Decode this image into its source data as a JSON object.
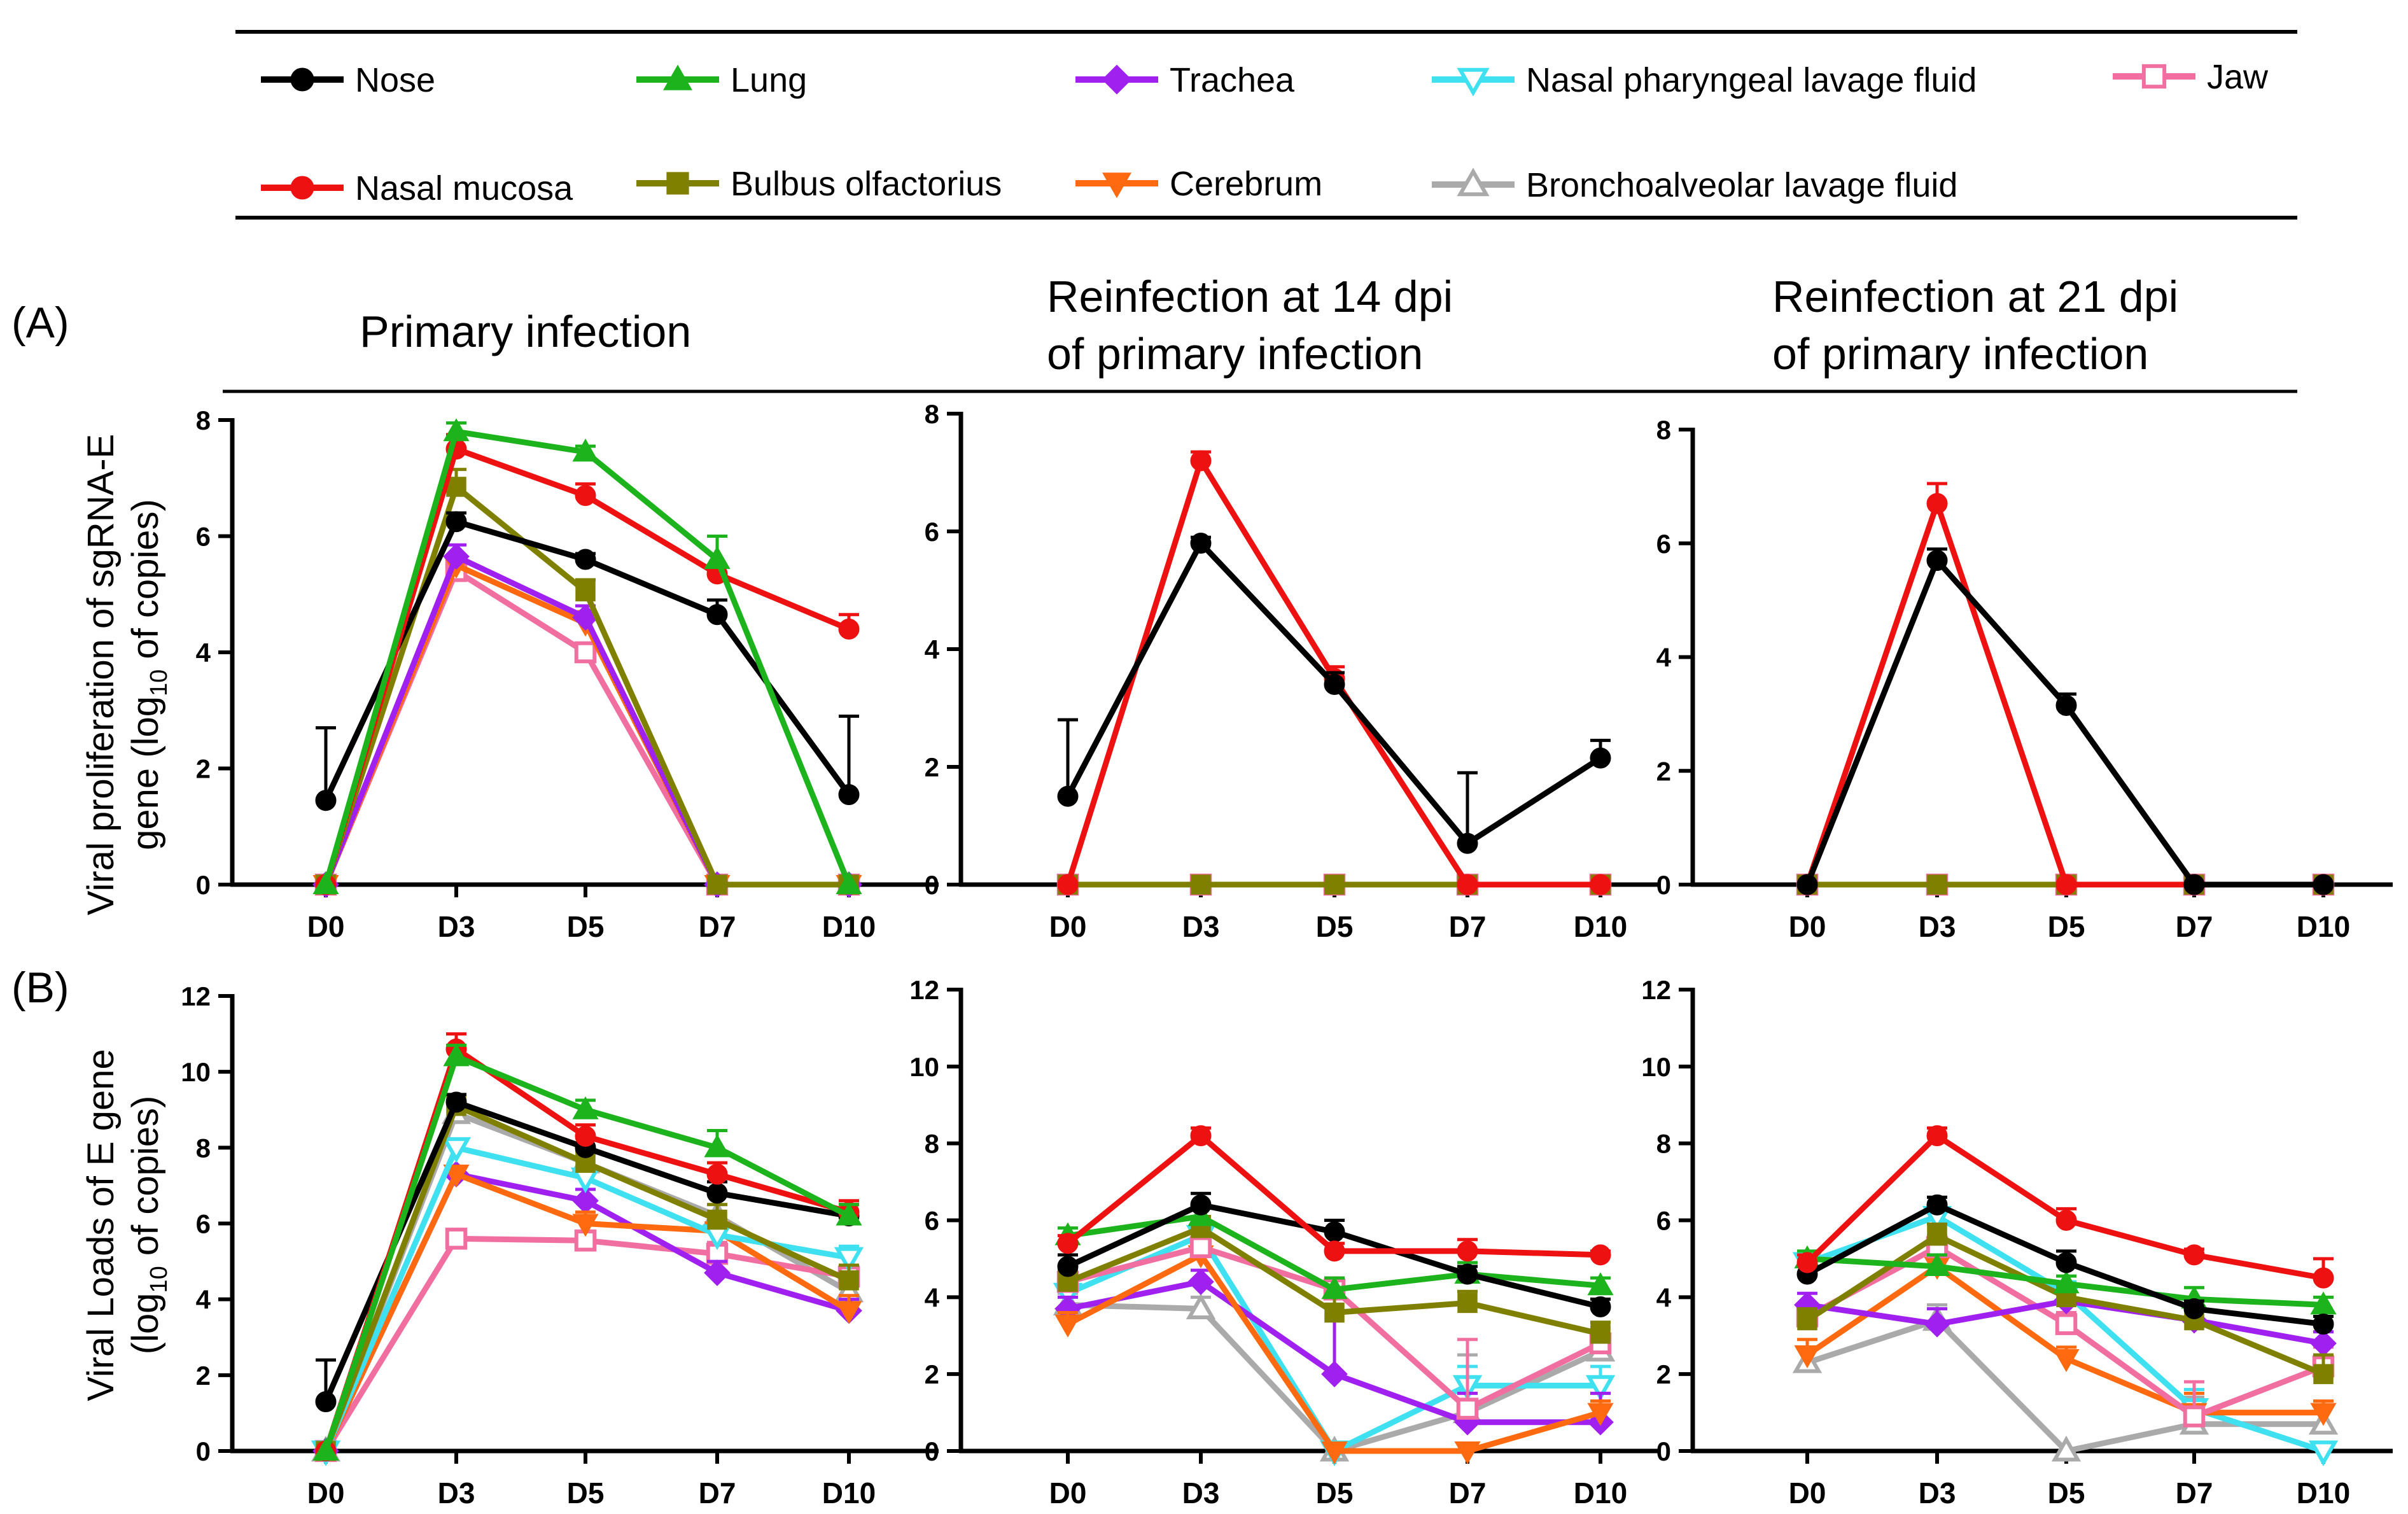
{
  "legend": [
    {
      "key": "nose",
      "label": "Nose",
      "color": "#000000",
      "marker": "circle"
    },
    {
      "key": "lung",
      "label": "Lung",
      "color": "#1DB31D",
      "marker": "triangle-up"
    },
    {
      "key": "trachea",
      "label": "Trachea",
      "color": "#A020F0",
      "marker": "diamond"
    },
    {
      "key": "nplf",
      "label": "Nasal pharyngeal lavage fluid",
      "color": "#3FE0F0",
      "marker": "triangle-down-open"
    },
    {
      "key": "jaw",
      "label": "Jaw",
      "color": "#F06EA0",
      "marker": "square-open"
    },
    {
      "key": "mucosa",
      "label": "Nasal mucosa",
      "color": "#EE1111",
      "marker": "circle"
    },
    {
      "key": "bulbus",
      "label": "Bulbus olfactorius",
      "color": "#808000",
      "marker": "square"
    },
    {
      "key": "cerebrum",
      "label": "Cerebrum",
      "color": "#FF6A10",
      "marker": "triangle-down"
    },
    {
      "key": "balf",
      "label": "Bronchoalveolar lavage fluid",
      "color": "#AAAAAA",
      "marker": "triangle-up-open"
    }
  ],
  "headers": {
    "panel_a": "(A)",
    "panel_b": "(B)",
    "col1": [
      "Primary infection"
    ],
    "col2": [
      "Reinfection at 14 dpi",
      "of primary infection"
    ],
    "col3": [
      "Reinfection at 21 dpi",
      "of primary infection"
    ]
  },
  "y_titles": {
    "a_line1_pre": "Viral proliferation of sgRNA-E",
    "a_line2_pre": "gene (log",
    "a_line2_sub": "10",
    "a_line2_post": " of copies)",
    "b_line1_pre": "Viral Loads of E gene",
    "b_line2_pre": "(log",
    "b_line2_sub": "10",
    "b_line2_post": " of copies)"
  },
  "chart_data": [
    {
      "id": "A1",
      "type": "line",
      "title": "Primary infection",
      "categories": [
        "D0",
        "D3",
        "D5",
        "D7",
        "D10"
      ],
      "ylim": [
        0,
        8
      ],
      "yticks": [
        0,
        2,
        4,
        6,
        8
      ],
      "ylabel": "Viral proliferation of sgRNA-E gene (log10 of copies)",
      "series": [
        {
          "key": "jaw",
          "values": [
            0,
            5.4,
            4.0,
            0,
            0
          ],
          "err": [
            0,
            0.15,
            0.15,
            0,
            0
          ]
        },
        {
          "key": "cerebrum",
          "values": [
            0,
            5.5,
            4.5,
            0,
            0
          ],
          "err": [
            0,
            0.15,
            0.2,
            0,
            0
          ]
        },
        {
          "key": "trachea",
          "values": [
            0,
            5.65,
            4.6,
            0,
            0
          ],
          "err": [
            0,
            0.2,
            0.2,
            0,
            0
          ]
        },
        {
          "key": "bulbus",
          "values": [
            0,
            6.85,
            5.05,
            0,
            0
          ],
          "err": [
            0,
            0.3,
            0.2,
            0,
            0
          ]
        },
        {
          "key": "nose",
          "values": [
            1.45,
            6.25,
            5.6,
            4.65,
            1.55
          ],
          "err": [
            1.25,
            0.15,
            0.1,
            0.25,
            1.35
          ]
        },
        {
          "key": "mucosa",
          "values": [
            0,
            7.5,
            6.7,
            5.35,
            4.4
          ],
          "err": [
            0,
            0.25,
            0.2,
            0.15,
            0.25
          ]
        },
        {
          "key": "lung",
          "values": [
            0,
            7.8,
            7.45,
            5.6,
            0
          ],
          "err": [
            0,
            0.15,
            0.1,
            0.4,
            0
          ]
        }
      ]
    },
    {
      "id": "A2",
      "type": "line",
      "title": "Reinfection at 14 dpi of primary infection",
      "categories": [
        "D0",
        "D3",
        "D5",
        "D7",
        "D10"
      ],
      "ylim": [
        0,
        8
      ],
      "yticks": [
        0,
        2,
        4,
        6,
        8
      ],
      "series": [
        {
          "key": "jaw",
          "values": [
            0,
            0,
            0,
            0,
            0
          ],
          "err": [
            0,
            0,
            0,
            0,
            0
          ]
        },
        {
          "key": "bulbus",
          "values": [
            0,
            0,
            0,
            0,
            0
          ],
          "err": [
            0,
            0,
            0,
            0,
            0
          ]
        },
        {
          "key": "mucosa",
          "values": [
            0,
            7.2,
            3.5,
            0,
            0
          ],
          "err": [
            0,
            0.15,
            0.2,
            0,
            0
          ]
        },
        {
          "key": "nose",
          "values": [
            1.5,
            5.8,
            3.4,
            0.7,
            2.15
          ],
          "err": [
            1.3,
            0.1,
            0.2,
            1.2,
            0.3
          ]
        }
      ]
    },
    {
      "id": "A3",
      "type": "line",
      "title": "Reinfection at 21 dpi of primary infection",
      "categories": [
        "D0",
        "D3",
        "D5",
        "D7",
        "D10"
      ],
      "ylim": [
        0,
        8
      ],
      "yticks": [
        0,
        2,
        4,
        6,
        8
      ],
      "series": [
        {
          "key": "jaw",
          "values": [
            0,
            0,
            0,
            0,
            0
          ],
          "err": [
            0,
            0,
            0,
            0,
            0
          ]
        },
        {
          "key": "bulbus",
          "values": [
            0,
            0,
            0,
            0,
            0
          ],
          "err": [
            0,
            0,
            0,
            0,
            0
          ]
        },
        {
          "key": "mucosa",
          "values": [
            0,
            6.7,
            0,
            0,
            0
          ],
          "err": [
            0,
            0.35,
            0,
            0,
            0
          ]
        },
        {
          "key": "nose",
          "values": [
            0,
            5.7,
            3.15,
            0,
            0
          ],
          "err": [
            0,
            0.2,
            0.2,
            0,
            0
          ]
        }
      ]
    },
    {
      "id": "B1",
      "type": "line",
      "title": "Primary infection",
      "categories": [
        "D0",
        "D3",
        "D5",
        "D7",
        "D10"
      ],
      "ylim": [
        0,
        12
      ],
      "yticks": [
        0,
        2,
        4,
        6,
        8,
        10,
        12
      ],
      "ylabel": "Viral Loads of E gene (log10 of copies)",
      "series": [
        {
          "key": "balf",
          "values": [
            0,
            8.9,
            7.6,
            6.2,
            4.2
          ],
          "err": [
            0,
            0.3,
            0.3,
            0.3,
            0.3
          ]
        },
        {
          "key": "jaw",
          "values": [
            0,
            5.6,
            5.55,
            5.2,
            4.6
          ],
          "err": [
            0,
            0.2,
            0.25,
            0.3,
            0.3
          ]
        },
        {
          "key": "trachea",
          "values": [
            0,
            7.3,
            6.6,
            4.7,
            3.7
          ],
          "err": [
            0,
            0.2,
            0.3,
            0.3,
            0.3
          ]
        },
        {
          "key": "cerebrum",
          "values": [
            0,
            7.3,
            6.0,
            5.8,
            3.7
          ],
          "err": [
            0,
            0.2,
            0.3,
            0.3,
            0.4
          ]
        },
        {
          "key": "nplf",
          "values": [
            0,
            8.0,
            7.2,
            5.7,
            5.1
          ],
          "err": [
            0,
            0.2,
            0.3,
            0.3,
            0.3
          ]
        },
        {
          "key": "bulbus",
          "values": [
            0,
            9.1,
            7.6,
            6.1,
            4.5
          ],
          "err": [
            0,
            0.3,
            0.3,
            0.4,
            0.4
          ]
        },
        {
          "key": "nose",
          "values": [
            1.3,
            9.2,
            8.0,
            6.8,
            6.2
          ],
          "err": [
            1.1,
            0.2,
            0.3,
            0.3,
            0.3
          ]
        },
        {
          "key": "mucosa",
          "values": [
            0,
            10.6,
            8.3,
            7.3,
            6.3
          ],
          "err": [
            0,
            0.4,
            0.3,
            0.3,
            0.3
          ]
        },
        {
          "key": "lung",
          "values": [
            0,
            10.4,
            9.0,
            8.0,
            6.2
          ],
          "err": [
            0,
            0.3,
            0.25,
            0.45,
            0.3
          ]
        }
      ]
    },
    {
      "id": "B2",
      "type": "line",
      "title": "Reinfection at 14 dpi of primary infection",
      "categories": [
        "D0",
        "D3",
        "D5",
        "D7",
        "D10"
      ],
      "ylim": [
        0,
        12
      ],
      "yticks": [
        0,
        2,
        4,
        6,
        8,
        10,
        12
      ],
      "series": [
        {
          "key": "balf",
          "values": [
            3.8,
            3.7,
            0,
            1.0,
            2.6
          ],
          "err": [
            0.3,
            0.3,
            0,
            1.5,
            0.4
          ]
        },
        {
          "key": "nplf",
          "values": [
            4.1,
            5.6,
            0,
            1.7,
            1.7
          ],
          "err": [
            0.3,
            0.3,
            0,
            0.5,
            0.5
          ]
        },
        {
          "key": "trachea",
          "values": [
            3.7,
            4.4,
            2.0,
            0.75,
            0.75
          ],
          "err": [
            0.3,
            0.3,
            2.0,
            0.75,
            0.75
          ]
        },
        {
          "key": "cerebrum",
          "values": [
            3.3,
            5.1,
            0,
            0,
            1.0
          ],
          "err": [
            0.3,
            0.3,
            0,
            0,
            0.3
          ]
        },
        {
          "key": "jaw",
          "values": [
            4.4,
            5.3,
            4.2,
            1.1,
            2.8
          ],
          "err": [
            0.3,
            0.3,
            0.3,
            1.8,
            0.4
          ]
        },
        {
          "key": "bulbus",
          "values": [
            4.4,
            5.8,
            3.6,
            3.85,
            3.05
          ],
          "err": [
            0.3,
            0.3,
            0.4,
            0.3,
            0.3
          ]
        },
        {
          "key": "lung",
          "values": [
            5.6,
            6.1,
            4.2,
            4.6,
            4.3
          ],
          "err": [
            0.2,
            0.3,
            0.3,
            0.3,
            0.2
          ]
        },
        {
          "key": "nose",
          "values": [
            4.8,
            6.4,
            5.7,
            4.6,
            3.75
          ],
          "err": [
            0.3,
            0.3,
            0.3,
            0.2,
            0.2
          ]
        },
        {
          "key": "mucosa",
          "values": [
            5.4,
            8.2,
            5.2,
            5.2,
            5.1
          ],
          "err": [
            0.2,
            0.2,
            0.2,
            0.3,
            0.1
          ]
        }
      ]
    },
    {
      "id": "B3",
      "type": "line",
      "title": "Reinfection at 21 dpi of primary infection",
      "categories": [
        "D0",
        "D3",
        "D5",
        "D7",
        "D10"
      ],
      "ylim": [
        0,
        12
      ],
      "yticks": [
        0,
        2,
        4,
        6,
        8,
        10,
        12
      ],
      "series": [
        {
          "key": "balf",
          "values": [
            2.3,
            3.4,
            0,
            0.7,
            0.7
          ],
          "err": [
            0.4,
            0.4,
            0,
            0.7,
            0.5
          ]
        },
        {
          "key": "nplf",
          "values": [
            4.9,
            6.1,
            4.1,
            1.1,
            0
          ],
          "err": [
            0.3,
            0.3,
            0.3,
            0.5,
            0
          ]
        },
        {
          "key": "cerebrum",
          "values": [
            2.5,
            4.8,
            2.4,
            1.0,
            1.0
          ],
          "err": [
            0.4,
            0.3,
            0.3,
            0.5,
            0.3
          ]
        },
        {
          "key": "jaw",
          "values": [
            3.5,
            5.3,
            3.3,
            0.9,
            2.2
          ],
          "err": [
            0.3,
            0.3,
            0.3,
            0.9,
            0.5
          ]
        },
        {
          "key": "trachea",
          "values": [
            3.8,
            3.3,
            3.9,
            3.4,
            2.8
          ],
          "err": [
            0.3,
            0.4,
            0.3,
            0.3,
            0.3
          ]
        },
        {
          "key": "bulbus",
          "values": [
            3.4,
            5.6,
            4.0,
            3.4,
            2.0
          ],
          "err": [
            0.3,
            0.3,
            0.3,
            0.4,
            0.5
          ]
        },
        {
          "key": "lung",
          "values": [
            5.0,
            4.8,
            4.35,
            3.95,
            3.8
          ],
          "err": [
            0.2,
            0.3,
            0.2,
            0.3,
            0.2
          ]
        },
        {
          "key": "nose",
          "values": [
            4.6,
            6.4,
            4.9,
            3.7,
            3.3
          ],
          "err": [
            0.3,
            0.2,
            0.3,
            0.2,
            0.2
          ]
        },
        {
          "key": "mucosa",
          "values": [
            4.9,
            8.2,
            6.0,
            5.1,
            4.5
          ],
          "err": [
            0.2,
            0.2,
            0.3,
            0.15,
            0.5
          ]
        }
      ]
    }
  ]
}
